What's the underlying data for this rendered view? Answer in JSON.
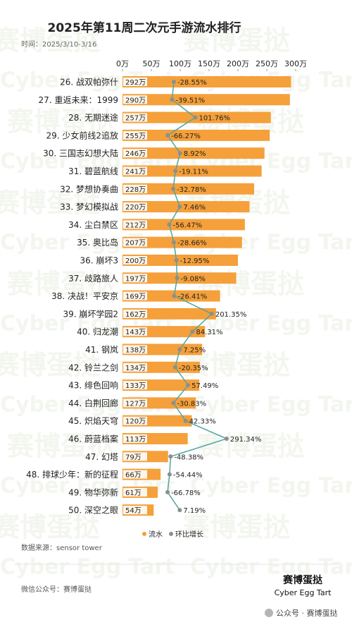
{
  "chart_data": {
    "type": "bar",
    "orientation": "horizontal",
    "title": "2025年第11周二次元手游流水排行",
    "subtitle": "时间：2025/3/10-3/16",
    "categories": [
      "26. 战双帕弥什",
      "27. 重返未来：1999",
      "28. 无期迷途",
      "29. 少女前线2追放",
      "30. 三国志幻想大陆",
      "31. 碧蓝航线",
      "32. 梦想协奏曲",
      "33. 梦幻模拟战",
      "34. 尘白禁区",
      "35. 奥比岛",
      "36. 崩坏3",
      "37. 歧路旅人",
      "38. 决战！平安京",
      "39. 崩坏学园2",
      "40. 归龙潮",
      "41. 钢岚",
      "42. 铃兰之剑",
      "43. 绯色回响",
      "44. 白荆回廊",
      "45. 炽焰天穹",
      "46. 蔚蓝档案",
      "47. 幻塔",
      "48. 排球少年：新的征程",
      "49. 物华弥新",
      "50. 深空之眼"
    ],
    "series": [
      {
        "name": "流水",
        "color": "#f5a03a",
        "values": [
          292,
          290,
          257,
          255,
          246,
          241,
          228,
          220,
          212,
          207,
          200,
          197,
          169,
          162,
          143,
          138,
          134,
          133,
          127,
          120,
          113,
          79,
          66,
          61,
          54
        ],
        "value_labels": [
          "292万",
          "290万",
          "257万",
          "255万",
          "246万",
          "241万",
          "228万",
          "220万",
          "212万",
          "207万",
          "200万",
          "197万",
          "169万",
          "162万",
          "143万",
          "138万",
          "134万",
          "133万",
          "127万",
          "120万",
          "113万",
          "79万",
          "66万",
          "61万",
          "54万"
        ]
      },
      {
        "name": "环比增长",
        "type": "line",
        "axis": "x2",
        "color": "#4fa5a0",
        "marker_color": "#8a8f8f",
        "values": [
          -28.55,
          -39.51,
          101.76,
          -66.27,
          8.92,
          -19.11,
          -32.78,
          7.46,
          -56.47,
          -28.66,
          -12.95,
          -9.08,
          -26.41,
          201.35,
          84.31,
          7.25,
          -20.35,
          57.49,
          -30.83,
          42.33,
          291.34,
          -48.38,
          -54.44,
          -66.78,
          7.19
        ],
        "value_labels": [
          "-28.55%",
          "-39.51%",
          "101.76%",
          "-66.27%",
          "8.92%",
          "-19.11%",
          "-32.78%",
          "7.46%",
          "-56.47%",
          "-28.66%",
          "-12.95%",
          "-9.08%",
          "-26.41%",
          "201.35%",
          "84.31%",
          "7.25%",
          "-20.35%",
          "57.49%",
          "-30.83%",
          "42.33%",
          "291.34%",
          "-48.38%",
          "-54.44%",
          "-66.78%",
          "7.19%"
        ]
      }
    ],
    "xlim": [
      0,
      300
    ],
    "xticks": [
      {
        "value": 0,
        "label": "0万"
      },
      {
        "value": 50,
        "label": "50万"
      },
      {
        "value": 100,
        "label": "100万"
      },
      {
        "value": 150,
        "label": "150万"
      },
      {
        "value": 200,
        "label": "200万"
      },
      {
        "value": 250,
        "label": "250万"
      },
      {
        "value": 300,
        "label": "300万"
      }
    ],
    "x2lim": [
      -340,
      710
    ],
    "grid": false,
    "legend": "bottom",
    "source": "数据来源：sensor tower"
  },
  "footer": {
    "wechat": "微信公众号：赛博蛋挞",
    "logo_cn": "赛博蛋挞",
    "logo_en": "Cyber Egg Tart",
    "credit": "公众号 · 赛博蛋挞"
  }
}
